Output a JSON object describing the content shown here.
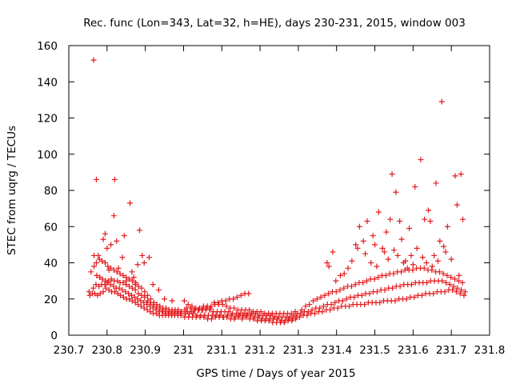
{
  "chart_data": {
    "type": "scatter",
    "title": "Rec. func (Lon=343, Lat=32, h=HE), days 230-231, 2015, window 003",
    "xlabel": "GPS time / Days of year 2015",
    "ylabel": "STEC from uqrg / TECUs",
    "xlim": [
      230.7,
      231.8
    ],
    "ylim": [
      0,
      160
    ],
    "x_ticks": [
      "230.7",
      "230.8",
      "230.9",
      "231",
      "231.1",
      "231.2",
      "231.3",
      "231.4",
      "231.5",
      "231.6",
      "231.7",
      "231.8"
    ],
    "y_ticks": [
      "0",
      "20",
      "40",
      "60",
      "80",
      "100",
      "120",
      "140",
      "160"
    ],
    "grid": false,
    "legend": "none",
    "marker": "plus",
    "color": "#e41a1c",
    "series": [
      {
        "x": [
          230.753,
          230.762,
          230.768,
          230.775,
          230.782,
          230.79,
          230.797,
          230.805,
          230.812,
          230.82,
          230.828,
          230.835,
          230.843,
          230.851,
          230.858,
          230.866,
          230.874,
          230.881,
          230.889,
          230.897,
          230.905,
          230.913,
          230.921,
          230.929,
          230.937,
          230.945,
          230.953,
          230.961,
          230.969,
          230.977,
          230.985,
          230.993,
          230.755,
          230.764,
          230.771,
          230.779,
          230.786,
          230.794,
          230.801,
          230.809,
          230.817,
          230.824,
          230.832,
          230.84,
          230.848,
          230.856,
          230.864,
          230.872,
          230.88,
          230.888,
          230.896,
          230.904,
          230.912,
          230.92,
          230.928,
          230.936,
          230.944,
          230.952,
          230.96,
          230.968,
          230.976,
          230.984,
          230.992,
          230.758,
          230.766,
          230.773,
          230.781,
          230.788,
          230.796,
          230.803,
          230.811,
          230.819,
          230.827,
          230.834,
          230.842,
          230.85,
          230.858,
          230.866,
          230.874,
          230.882,
          230.89,
          230.898,
          230.906,
          230.914,
          230.922,
          230.93,
          230.938,
          230.946,
          230.954,
          230.962,
          230.97,
          230.978,
          230.986,
          230.994,
          230.766,
          230.772,
          230.78,
          230.787,
          230.795,
          230.802,
          230.81,
          230.818,
          230.826,
          230.834,
          230.842,
          230.85,
          230.858,
          230.866,
          230.874,
          230.882,
          230.89,
          230.898,
          230.906,
          230.914,
          230.922,
          230.93,
          230.938,
          230.946,
          230.954,
          230.962,
          230.97,
          230.978,
          230.986,
          230.765,
          230.772,
          230.777,
          230.79,
          230.795,
          230.8,
          230.805,
          230.81,
          230.818,
          230.82,
          230.825,
          230.83,
          230.84,
          230.845,
          230.85,
          230.86,
          230.865,
          230.87,
          230.875,
          230.88,
          230.885,
          230.892,
          230.897,
          230.91,
          230.92,
          230.935,
          230.95,
          230.97,
          231.003,
          231.013,
          231.023,
          231.033,
          231.043,
          231.053,
          231.063,
          231.073,
          231.083,
          231.093,
          231.103,
          231.113,
          231.123,
          231.133,
          231.143,
          231.153,
          231.163,
          231.173,
          231.183,
          231.193,
          231.203,
          231.213,
          231.223,
          231.233,
          231.243,
          231.253,
          231.263,
          231.273,
          231.283,
          231.293,
          231.005,
          231.015,
          231.025,
          231.035,
          231.045,
          231.055,
          231.065,
          231.075,
          231.085,
          231.095,
          231.105,
          231.115,
          231.125,
          231.135,
          231.145,
          231.155,
          231.165,
          231.175,
          231.185,
          231.195,
          231.205,
          231.215,
          231.225,
          231.235,
          231.245,
          231.255,
          231.265,
          231.275,
          231.285,
          231.295,
          231.008,
          231.018,
          231.028,
          231.038,
          231.048,
          231.058,
          231.068,
          231.078,
          231.088,
          231.098,
          231.108,
          231.118,
          231.128,
          231.138,
          231.148,
          231.158,
          231.168,
          231.178,
          231.188,
          231.198,
          231.208,
          231.218,
          231.228,
          231.238,
          231.248,
          231.258,
          231.268,
          231.278,
          231.288,
          231.298,
          231.002,
          231.012,
          231.022,
          231.032,
          231.042,
          231.052,
          231.062,
          231.072,
          231.082,
          231.092,
          231.102,
          231.112,
          231.122,
          231.132,
          231.142,
          231.152,
          231.162,
          231.172,
          231.182,
          231.192,
          231.202,
          231.212,
          231.222,
          231.232,
          231.242,
          231.252,
          231.262,
          231.272,
          231.282,
          231.292,
          231.08,
          231.09,
          231.1,
          231.11,
          231.12,
          231.13,
          231.14,
          231.15,
          231.16,
          231.17,
          231.003,
          231.01,
          231.02,
          231.03,
          231.04,
          231.05,
          231.06,
          231.07,
          231.303,
          231.313,
          231.323,
          231.333,
          231.343,
          231.353,
          231.363,
          231.373,
          231.383,
          231.393,
          231.403,
          231.413,
          231.423,
          231.433,
          231.443,
          231.453,
          231.463,
          231.473,
          231.483,
          231.493,
          231.503,
          231.513,
          231.523,
          231.533,
          231.543,
          231.553,
          231.563,
          231.573,
          231.583,
          231.593,
          231.603,
          231.613,
          231.623,
          231.633,
          231.643,
          231.653,
          231.663,
          231.673,
          231.683,
          231.693,
          231.703,
          231.713,
          231.723,
          231.733,
          231.306,
          231.316,
          231.326,
          231.336,
          231.346,
          231.356,
          231.366,
          231.376,
          231.386,
          231.396,
          231.406,
          231.416,
          231.426,
          231.436,
          231.446,
          231.456,
          231.466,
          231.476,
          231.486,
          231.496,
          231.506,
          231.516,
          231.526,
          231.536,
          231.546,
          231.556,
          231.566,
          231.576,
          231.586,
          231.596,
          231.606,
          231.616,
          231.626,
          231.636,
          231.646,
          231.656,
          231.666,
          231.676,
          231.686,
          231.696,
          231.706,
          231.716,
          231.726,
          231.736,
          231.309,
          231.319,
          231.329,
          231.339,
          231.349,
          231.359,
          231.369,
          231.379,
          231.389,
          231.399,
          231.409,
          231.419,
          231.429,
          231.439,
          231.449,
          231.459,
          231.469,
          231.479,
          231.489,
          231.499,
          231.509,
          231.519,
          231.529,
          231.539,
          231.549,
          231.559,
          231.569,
          231.579,
          231.589,
          231.599,
          231.609,
          231.619,
          231.629,
          231.639,
          231.649,
          231.659,
          231.669,
          231.679,
          231.689,
          231.699,
          231.709,
          231.719,
          231.729,
          231.375,
          231.38,
          231.39,
          231.398,
          231.41,
          231.42,
          231.43,
          231.44,
          231.45,
          231.455,
          231.46,
          231.47,
          231.475,
          231.48,
          231.49,
          231.495,
          231.5,
          231.505,
          231.51,
          231.52,
          231.525,
          231.53,
          231.535,
          231.54,
          231.545,
          231.55,
          231.555,
          231.56,
          231.565,
          231.57,
          231.575,
          231.58,
          231.585,
          231.59,
          231.595,
          231.6,
          231.605,
          231.61,
          231.62,
          231.625,
          231.63,
          231.635,
          231.64,
          231.645,
          231.65,
          231.655,
          231.66,
          231.665,
          231.67,
          231.675,
          231.68,
          231.685,
          231.69,
          231.7,
          231.71,
          231.715,
          231.72,
          231.725,
          231.73
        ],
        "y": [
          24,
          23,
          23,
          22,
          23,
          24,
          26,
          25,
          24,
          24,
          23,
          22,
          21,
          20,
          20,
          19,
          18,
          17,
          16,
          15,
          14,
          13,
          12,
          12,
          11,
          11,
          11,
          11,
          11,
          11,
          11,
          11,
          22,
          26,
          28,
          27,
          28,
          28,
          29,
          28,
          27,
          26,
          26,
          25,
          24,
          23,
          22,
          21,
          20,
          19,
          18,
          17,
          16,
          15,
          14,
          13,
          13,
          12,
          12,
          12,
          12,
          12,
          12,
          35,
          38,
          33,
          32,
          31,
          30,
          30,
          31,
          30,
          30,
          29,
          29,
          28,
          27,
          26,
          25,
          23,
          22,
          21,
          19,
          18,
          17,
          16,
          15,
          14,
          14,
          13,
          13,
          13,
          13,
          13,
          44,
          40,
          42,
          41,
          40,
          38,
          37,
          36,
          35,
          34,
          33,
          32,
          31,
          30,
          28,
          27,
          26,
          24,
          22,
          20,
          18,
          17,
          16,
          15,
          15,
          14,
          14,
          14,
          14,
          152,
          86,
          44,
          53,
          56,
          48,
          36,
          50,
          66,
          86,
          52,
          37,
          43,
          55,
          30,
          73,
          35,
          32,
          29,
          39,
          58,
          44,
          40,
          43,
          28,
          25,
          20,
          19,
          10,
          10,
          10,
          10,
          10,
          10,
          9,
          9,
          10,
          10,
          10,
          10,
          9,
          9,
          10,
          9,
          10,
          9,
          9,
          8,
          8,
          8,
          8,
          7,
          7,
          7,
          7,
          8,
          8,
          9,
          12,
          12,
          12,
          11,
          11,
          11,
          11,
          11,
          11,
          11,
          10,
          11,
          11,
          10,
          11,
          11,
          11,
          11,
          10,
          10,
          9,
          9,
          9,
          9,
          9,
          8,
          8,
          9,
          9,
          10,
          15,
          15,
          14,
          14,
          14,
          14,
          14,
          13,
          13,
          13,
          13,
          13,
          12,
          12,
          12,
          12,
          12,
          12,
          12,
          11,
          11,
          11,
          11,
          10,
          10,
          10,
          10,
          10,
          11,
          12,
          19,
          17,
          16,
          15,
          15,
          16,
          16,
          16,
          17,
          17,
          17,
          16,
          15,
          15,
          14,
          14,
          14,
          14,
          13,
          13,
          13,
          12,
          12,
          12,
          12,
          12,
          12,
          12,
          12,
          13,
          18,
          18,
          19,
          19,
          20,
          20,
          21,
          22,
          23,
          23,
          14,
          13,
          13,
          14,
          14,
          14,
          15,
          15,
          10,
          11,
          11,
          12,
          12,
          13,
          13,
          14,
          14,
          15,
          15,
          16,
          16,
          16,
          17,
          17,
          17,
          17,
          18,
          18,
          18,
          18,
          19,
          19,
          19,
          19,
          20,
          20,
          20,
          21,
          21,
          22,
          22,
          23,
          23,
          23,
          24,
          24,
          24,
          25,
          25,
          24,
          23,
          22,
          12,
          13,
          13,
          14,
          15,
          15,
          16,
          17,
          17,
          18,
          19,
          19,
          20,
          21,
          21,
          22,
          22,
          23,
          23,
          24,
          24,
          25,
          25,
          26,
          26,
          27,
          27,
          28,
          28,
          28,
          29,
          29,
          29,
          29,
          30,
          30,
          30,
          30,
          29,
          28,
          27,
          26,
          25,
          24,
          14,
          16,
          17,
          19,
          20,
          21,
          22,
          23,
          24,
          24,
          25,
          26,
          27,
          27,
          28,
          29,
          29,
          30,
          31,
          31,
          32,
          33,
          33,
          34,
          34,
          35,
          35,
          36,
          36,
          36,
          37,
          37,
          37,
          36,
          36,
          35,
          35,
          34,
          33,
          32,
          31,
          30,
          29,
          40,
          38,
          46,
          30,
          33,
          34,
          37,
          41,
          50,
          48,
          60,
          52,
          45,
          63,
          40,
          55,
          50,
          38,
          68,
          48,
          46,
          57,
          42,
          64,
          89,
          47,
          79,
          44,
          63,
          53,
          40,
          41,
          37,
          59,
          44,
          39,
          82,
          48,
          97,
          43,
          64,
          40,
          69,
          63,
          38,
          44,
          84,
          41,
          52,
          129,
          49,
          46,
          60,
          42,
          88,
          72,
          33,
          89,
          64
        ]
      }
    ]
  }
}
